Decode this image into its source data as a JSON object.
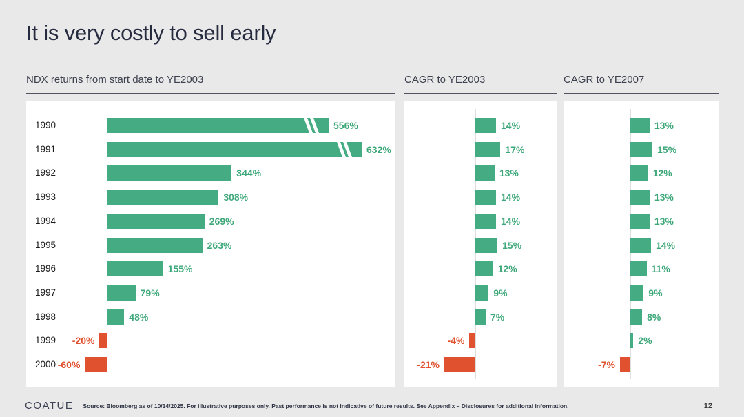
{
  "page": {
    "title": "It is very costly to sell early",
    "page_number": "12"
  },
  "colors": {
    "background": "#e9e9e9",
    "panel": "#ffffff",
    "positive_bar": "#45ab82",
    "positive_label": "#3fa87a",
    "negative": "#e0512f",
    "title_text": "#262b3f",
    "header_text": "#3d414e",
    "header_rule": "#515460",
    "axis_line": "#dedede"
  },
  "footer": {
    "logo": "COATUE",
    "source": "Source: Bloomberg as of 10/14/2025. For illustrative purposes only. Past performance is not indicative of future results. See Appendix – Disclosures for additional information."
  },
  "chart_data": [
    {
      "type": "bar",
      "orientation": "horizontal",
      "title": "NDX returns from start date to YE2003",
      "categories": [
        "1990",
        "1991",
        "1992",
        "1993",
        "1994",
        "1995",
        "1996",
        "1997",
        "1998",
        "1999",
        "2000"
      ],
      "values": [
        556,
        632,
        344,
        308,
        269,
        263,
        155,
        79,
        48,
        -20,
        -60
      ],
      "unit": "%",
      "value_labels": [
        "556%",
        "632%",
        "344%",
        "308%",
        "269%",
        "263%",
        "155%",
        "79%",
        "48%",
        "-20%",
        "-60%"
      ],
      "axis_break_values": [
        556,
        632
      ],
      "show_category_labels": true,
      "grid": "none",
      "legend": "none"
    },
    {
      "type": "bar",
      "orientation": "horizontal",
      "title": "CAGR to YE2003",
      "categories": [
        "1990",
        "1991",
        "1992",
        "1993",
        "1994",
        "1995",
        "1996",
        "1997",
        "1998",
        "1999",
        "2000"
      ],
      "values": [
        14,
        17,
        13,
        14,
        14,
        15,
        12,
        9,
        7,
        -4,
        -21
      ],
      "unit": "%",
      "value_labels": [
        "14%",
        "17%",
        "13%",
        "14%",
        "14%",
        "15%",
        "12%",
        "9%",
        "7%",
        "-4%",
        "-21%"
      ],
      "show_category_labels": false,
      "grid": "none",
      "legend": "none"
    },
    {
      "type": "bar",
      "orientation": "horizontal",
      "title": "CAGR to YE2007",
      "categories": [
        "1990",
        "1991",
        "1992",
        "1993",
        "1994",
        "1995",
        "1996",
        "1997",
        "1998",
        "1999",
        "2000"
      ],
      "values": [
        13,
        15,
        12,
        13,
        13,
        14,
        11,
        9,
        8,
        2,
        -7
      ],
      "unit": "%",
      "value_labels": [
        "13%",
        "15%",
        "12%",
        "13%",
        "13%",
        "14%",
        "11%",
        "9%",
        "8%",
        "2%",
        "-7%"
      ],
      "show_category_labels": false,
      "grid": "none",
      "legend": "none"
    }
  ]
}
